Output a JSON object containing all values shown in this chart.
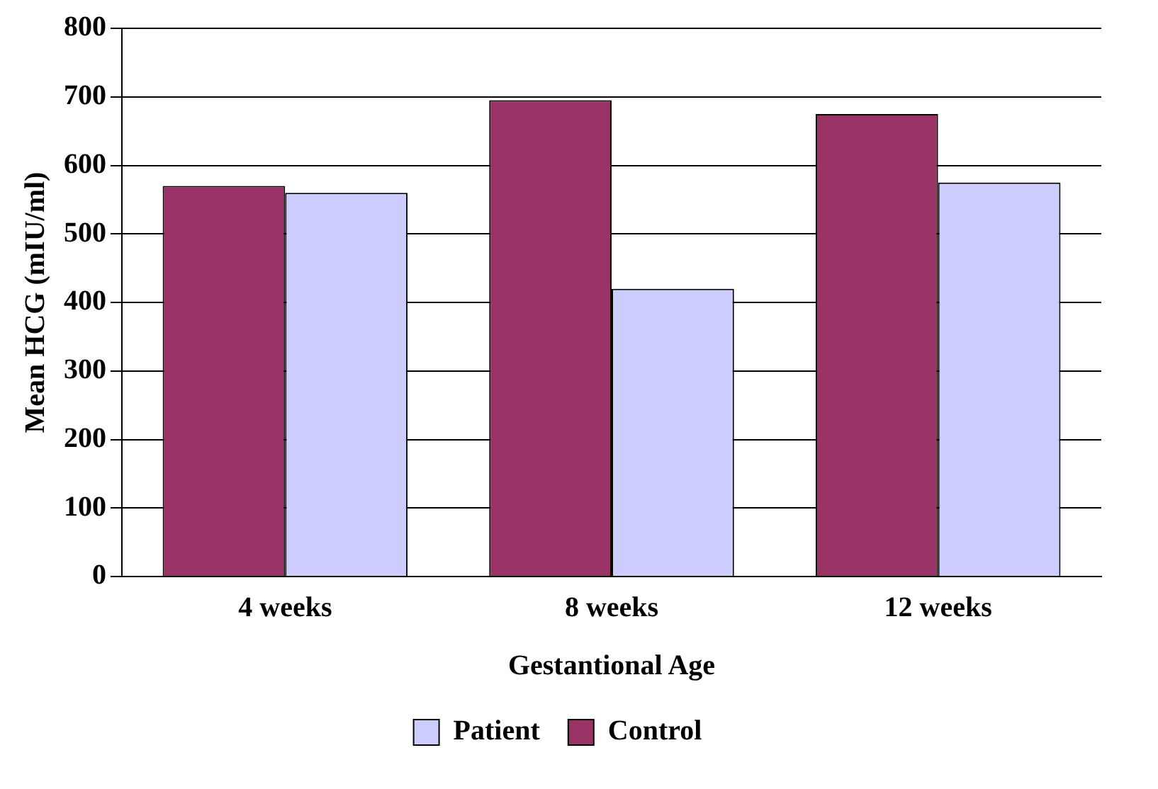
{
  "chart_data": {
    "type": "bar",
    "xlabel": "Gestantional Age",
    "ylabel": "Mean HCG (mIU/ml)",
    "categories": [
      "4 weeks",
      "8 weeks",
      "12 weeks"
    ],
    "series": [
      {
        "name": "Control",
        "color": "#993366",
        "values": [
          570,
          695,
          675
        ]
      },
      {
        "name": "Patient",
        "color": "#ccccff",
        "values": [
          560,
          420,
          575
        ]
      }
    ],
    "ylim": [
      0,
      800
    ],
    "yticks": [
      0,
      100,
      200,
      300,
      400,
      500,
      600,
      700,
      800
    ],
    "grid": "y",
    "legend": "bottom"
  }
}
